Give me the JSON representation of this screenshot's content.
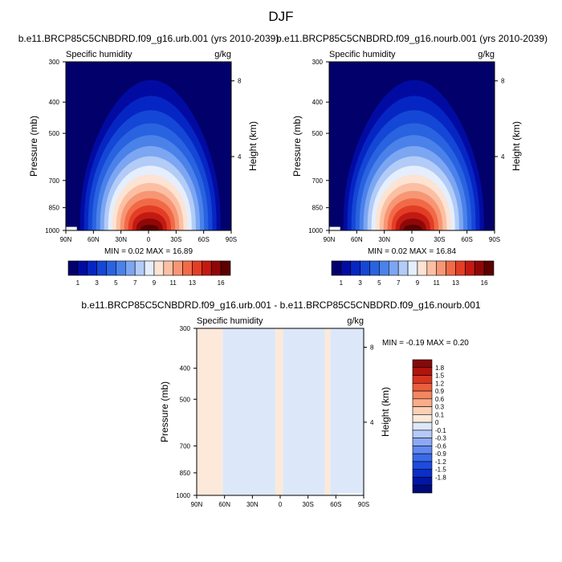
{
  "figure": {
    "title": "DJF"
  },
  "colors": {
    "abs_levels": [
      "#02006b",
      "#020ba1",
      "#0626c4",
      "#1547d6",
      "#2a63e0",
      "#4a82ea",
      "#7ca6f1",
      "#b2ccf7",
      "#e5eefc",
      "#fde3d3",
      "#fbc0a3",
      "#f79674",
      "#f16a48",
      "#e33e25",
      "#c21a12",
      "#8f0807",
      "#5c0000"
    ],
    "diff_levels": [
      "#000b78",
      "#0216a6",
      "#0b2ec8",
      "#1c4bde",
      "#3a6ae8",
      "#6289f0",
      "#8ca9f5",
      "#b6c9f8",
      "#dce8fa",
      "#fde9da",
      "#fbd1b6",
      "#f9ad89",
      "#f48660",
      "#ec5e3c",
      "#d73420",
      "#b0140d",
      "#840a0a"
    ]
  },
  "axes": {
    "ylabel_left": "Pressure (mb)",
    "ylabel_right": "Height (km)",
    "pressure_ticks": [
      "300",
      "400",
      "500",
      "700",
      "850",
      "1000"
    ],
    "height_ticks": [
      "8",
      "4"
    ],
    "lat_ticks": [
      "90N",
      "60N",
      "30N",
      "0",
      "30S",
      "60S",
      "90S"
    ]
  },
  "abs_colorbar_labels": [
    "1",
    "3",
    "5",
    "7",
    "9",
    "11",
    "13",
    "16"
  ],
  "diff_colorbar_labels": [
    "1.8",
    "1.5",
    "1.2",
    "0.9",
    "0.6",
    "0.3",
    "0.1",
    "0",
    "-0.1",
    "-0.3",
    "-0.6",
    "-0.9",
    "-1.2",
    "-1.5",
    "-1.8"
  ],
  "chart_data": [
    {
      "type": "heatmap",
      "title": "b.e11.BRCP85C5CNBDRD.f09_g16.urb.001 (yrs 2010-2039)",
      "subtitle_left": "Specific humidity",
      "subtitle_right": "g/kg",
      "xlabel": "",
      "ylabel": "Pressure (mb)",
      "ylabel_right": "Height (km)",
      "x": [
        "90N",
        "60N",
        "30N",
        "0",
        "30S",
        "60S",
        "90S"
      ],
      "y_ticks_pressure": [
        300,
        400,
        500,
        700,
        850,
        1000
      ],
      "ylim": [
        1000,
        300
      ],
      "min_text": "MIN =   0.02   MAX =  16.89",
      "min": 0.02,
      "max": 16.89,
      "colorbar_levels": [
        1,
        2,
        3,
        4,
        5,
        6,
        7,
        8,
        9,
        10,
        11,
        12,
        13,
        14,
        15,
        16
      ],
      "peak_lat": 0,
      "peak_pressure": 970,
      "peak_value": 16.89
    },
    {
      "type": "heatmap",
      "title": "b.e11.BRCP85C5CNBDRD.f09_g16.nourb.001 (yrs 2010-2039)",
      "subtitle_left": "Specific humidity",
      "subtitle_right": "g/kg",
      "xlabel": "",
      "ylabel": "Pressure (mb)",
      "ylabel_right": "Height (km)",
      "x": [
        "90N",
        "60N",
        "30N",
        "0",
        "30S",
        "60S",
        "90S"
      ],
      "y_ticks_pressure": [
        300,
        400,
        500,
        700,
        850,
        1000
      ],
      "ylim": [
        1000,
        300
      ],
      "min_text": "MIN =   0.02   MAX =  16.84",
      "min": 0.02,
      "max": 16.84,
      "colorbar_levels": [
        1,
        2,
        3,
        4,
        5,
        6,
        7,
        8,
        9,
        10,
        11,
        12,
        13,
        14,
        15,
        16
      ],
      "peak_lat": 0,
      "peak_pressure": 970,
      "peak_value": 16.84
    },
    {
      "type": "heatmap",
      "title": "b.e11.BRCP85C5CNBDRD.f09_g16.urb.001 - b.e11.BRCP85C5CNBDRD.f09_g16.nourb.001",
      "subtitle_left": "Specific humidity",
      "subtitle_right": "g/kg",
      "xlabel": "",
      "ylabel": "Pressure (mb)",
      "ylabel_right": "Height (km)",
      "x": [
        "90N",
        "60N",
        "30N",
        "0",
        "30S",
        "60S",
        "90S"
      ],
      "y_ticks_pressure": [
        300,
        400,
        500,
        700,
        850,
        1000
      ],
      "ylim": [
        1000,
        300
      ],
      "min_text": "MIN =  -0.19   MAX =   0.20",
      "min": -0.19,
      "max": 0.2,
      "colorbar_levels": [
        -1.8,
        -1.5,
        -1.2,
        -0.9,
        -0.6,
        -0.3,
        -0.1,
        0,
        0.1,
        0.3,
        0.6,
        0.9,
        1.2,
        1.5,
        1.8
      ],
      "bands": [
        {
          "lat_from": 90,
          "lat_to": 62,
          "sign": "positive",
          "value_range": [
            0,
            0.1
          ]
        },
        {
          "lat_from": 62,
          "lat_to": 5,
          "sign": "negative",
          "value_range": [
            -0.1,
            0
          ]
        },
        {
          "lat_from": 5,
          "lat_to": -3,
          "sign": "positive",
          "value_range": [
            0,
            0.1
          ]
        },
        {
          "lat_from": -3,
          "lat_to": -48,
          "sign": "negative",
          "value_range": [
            -0.1,
            0
          ]
        },
        {
          "lat_from": -48,
          "lat_to": -54,
          "sign": "positive",
          "value_range": [
            0,
            0.1
          ]
        },
        {
          "lat_from": -54,
          "lat_to": -90,
          "sign": "negative",
          "value_range": [
            -0.1,
            0
          ]
        }
      ]
    }
  ]
}
